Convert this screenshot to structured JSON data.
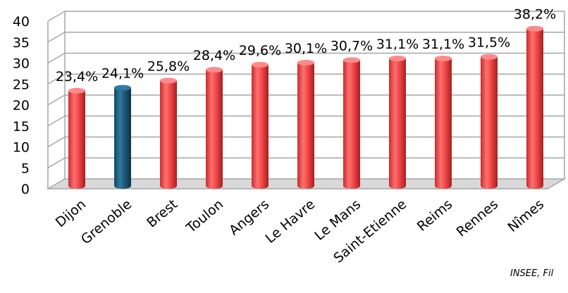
{
  "source_note": "INSEE, Fil",
  "colors": {
    "default_bar": "#f04a4a",
    "highlight_bar": "#1e5a7a",
    "grid": "#a6a6a6"
  },
  "chart_data": {
    "type": "bar",
    "categories": [
      "Dijon",
      "Grenoble",
      "Brest",
      "Toulon",
      "Angers",
      "Le Havre",
      "Le Mans",
      "Saint-Etienne",
      "Reims",
      "Rennes",
      "Nîmes"
    ],
    "values": [
      23.4,
      24.1,
      25.8,
      28.4,
      29.6,
      30.1,
      30.7,
      31.1,
      31.1,
      31.5,
      38.2
    ],
    "labels": [
      "23,4%",
      "24,1%",
      "25,8%",
      "28,4%",
      "29,6%",
      "30,1%",
      "30,7%",
      "31,1%",
      "31,1%",
      "31,5%",
      "38,2%"
    ],
    "highlight_index": 1,
    "ylim": [
      0,
      40
    ],
    "yticks": [
      "0",
      "5",
      "10",
      "15",
      "20",
      "25",
      "30",
      "35",
      "40"
    ],
    "grid": true,
    "style": "3d-cylinder",
    "title": "",
    "xlabel": "",
    "ylabel": ""
  }
}
